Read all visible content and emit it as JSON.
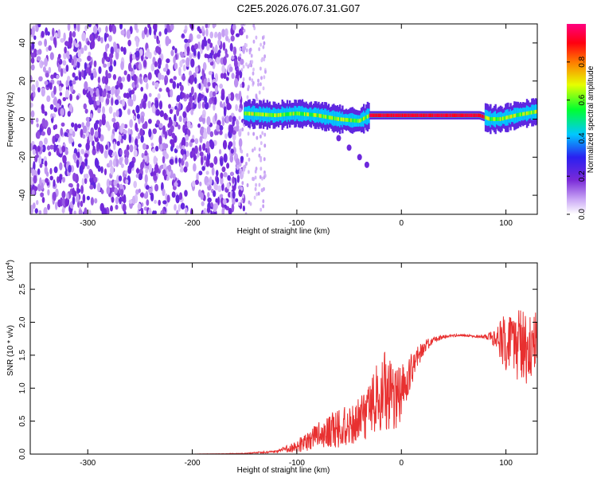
{
  "title": "C2E5.2026.076.07.31.G07",
  "chart_data": [
    {
      "type": "heatmap",
      "xlabel": "Height of straight line (km)",
      "ylabel": "Frequency (Hz)",
      "xlim": [
        -355,
        130
      ],
      "ylim": [
        -50,
        50
      ],
      "xticks": [
        -300,
        -200,
        -100,
        0,
        100
      ],
      "xtick_labels": [
        "-300",
        "-200",
        "-100",
        "0",
        "100"
      ],
      "yticks": [
        -40,
        -20,
        0,
        20,
        40
      ],
      "ytick_labels": [
        "-40",
        "-20",
        "0",
        "20",
        "40"
      ],
      "colorbar": {
        "label": "Normalized spectral amplitude",
        "range": [
          0,
          1
        ],
        "ticks": [
          0.0,
          0.2,
          0.4,
          0.6,
          0.8
        ],
        "tick_labels": [
          "0.0",
          "0.2",
          "0.4",
          "0.6",
          "0.8"
        ],
        "colormap": "rainbow (white-violet-blue-cyan-green-yellow-red-magenta)"
      },
      "features": [
        {
          "description": "noise",
          "x_range": [
            -355,
            -150
          ],
          "freq_range": [
            -50,
            50
          ],
          "amplitude": 0.05
        },
        {
          "description": "signal trace",
          "points": [
            [
              -150,
              3
            ],
            [
              -120,
              2
            ],
            [
              -100,
              3
            ],
            [
              -80,
              2
            ],
            [
              -60,
              0
            ],
            [
              -40,
              -1
            ],
            [
              -30,
              2
            ],
            [
              -20,
              2
            ],
            [
              0,
              2
            ],
            [
              40,
              2
            ],
            [
              75,
              2
            ],
            [
              85,
              0
            ],
            [
              95,
              0
            ],
            [
              110,
              2
            ],
            [
              130,
              4
            ]
          ]
        },
        {
          "description": "branch",
          "points": [
            [
              -60,
              -10
            ],
            [
              -50,
              -15
            ],
            [
              -40,
              -20
            ],
            [
              -33,
              -24
            ]
          ]
        }
      ],
      "grid": false
    },
    {
      "type": "line",
      "xlabel": "Height of straight line (km)",
      "ylabel": "SNR (10 * v/v)",
      "y_multiplier": "(x10^4)",
      "xlim": [
        -355,
        130
      ],
      "ylim": [
        0,
        2.9
      ],
      "xticks": [
        -300,
        -200,
        -100,
        0,
        100
      ],
      "xtick_labels": [
        "-300",
        "-200",
        "-100",
        "0",
        "100"
      ],
      "yticks": [
        0,
        0.5,
        1.0,
        1.5,
        2.0,
        2.5
      ],
      "ytick_labels": [
        "0.0",
        "0.5",
        "1.0",
        "1.5",
        "2.0",
        "2.5"
      ],
      "series": [
        {
          "color": "#e83030",
          "x": [
            -355,
            -300,
            -200,
            -150,
            -120,
            -110,
            -100,
            -90,
            -80,
            -70,
            -60,
            -50,
            -40,
            -30,
            -25,
            -20,
            -15,
            -10,
            -5,
            0,
            10,
            20,
            30,
            40,
            50,
            60,
            70,
            80,
            90,
            100,
            110,
            120,
            130
          ],
          "y": [
            0.0,
            0.0,
            0.0,
            0.01,
            0.04,
            0.08,
            0.12,
            0.2,
            0.3,
            0.35,
            0.4,
            0.45,
            0.5,
            0.7,
            0.9,
            1.0,
            0.95,
            0.9,
            0.8,
            0.95,
            1.3,
            1.6,
            1.72,
            1.78,
            1.8,
            1.8,
            1.79,
            1.78,
            1.75,
            1.7,
            1.65,
            1.6,
            1.7
          ],
          "noise_band": [
            0.0,
            0.0,
            0.0,
            0.005,
            0.02,
            0.05,
            0.1,
            0.15,
            0.2,
            0.25,
            0.3,
            0.3,
            0.35,
            0.5,
            0.6,
            0.7,
            0.6,
            0.55,
            0.5,
            0.4,
            0.25,
            0.12,
            0.05,
            0.03,
            0.02,
            0.02,
            0.02,
            0.03,
            0.15,
            0.45,
            0.55,
            0.6,
            0.5
          ]
        }
      ],
      "grid": false
    }
  ]
}
